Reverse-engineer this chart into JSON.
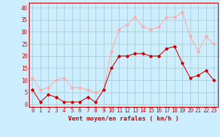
{
  "hours": [
    0,
    1,
    2,
    3,
    4,
    5,
    6,
    7,
    8,
    9,
    10,
    11,
    12,
    13,
    14,
    15,
    16,
    17,
    18,
    19,
    20,
    21,
    22,
    23
  ],
  "vent_moyen": [
    6,
    1,
    4,
    3,
    1,
    1,
    1,
    3,
    1,
    6,
    15,
    20,
    20,
    21,
    21,
    20,
    20,
    23,
    24,
    17,
    11,
    12,
    14,
    10
  ],
  "rafales": [
    11,
    6,
    7,
    10,
    11,
    7,
    7,
    6,
    5,
    6,
    22,
    31,
    33,
    36,
    32,
    31,
    32,
    36,
    36,
    38,
    28,
    22,
    28,
    25
  ],
  "color_moyen": "#cc0000",
  "color_rafales": "#ffaaaa",
  "bg_color": "#cceeff",
  "grid_color": "#aacccc",
  "xlabel": "Vent moyen/en rafales ( km/h )",
  "xlabel_color": "#cc0000",
  "yticks": [
    0,
    5,
    10,
    15,
    20,
    25,
    30,
    35,
    40
  ],
  "ylim": [
    -1,
    42
  ],
  "xlim": [
    -0.5,
    23.5
  ],
  "tick_fontsize": 5.5,
  "xlabel_fontsize": 6.5
}
